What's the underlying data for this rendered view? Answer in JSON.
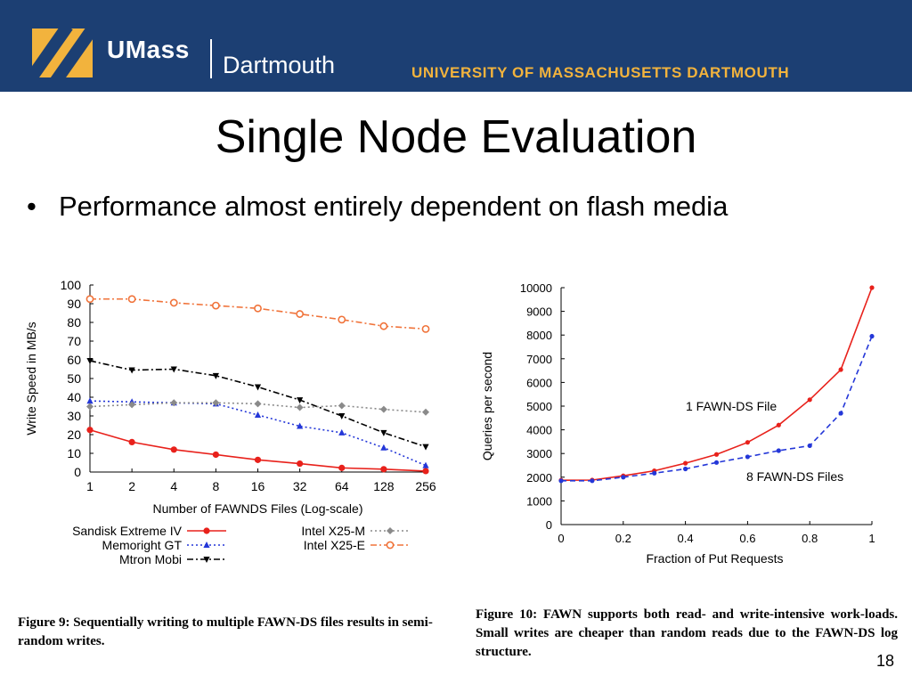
{
  "header": {
    "brand_main": "UMass",
    "brand_sub": "Dartmouth",
    "university": "UNIVERSITY OF MASSACHUSETTS DARTMOUTH",
    "banner_color": "#1c3f73",
    "accent_color": "#f2b33d"
  },
  "slide": {
    "title": "Single Node Evaluation",
    "bullet": "Performance almost entirely dependent on flash media",
    "page_number": "18"
  },
  "captions": {
    "fig9": "Figure 9: Sequentially writing to multiple FAWN-DS files results in semi-random writes.",
    "fig10": "Figure 10: FAWN supports both read- and write-intensive work-loads. Small writes are cheaper than random reads due to the FAWN-DS log structure."
  },
  "chart_data": [
    {
      "type": "line",
      "xlabel": "Number of FAWNDS Files (Log-scale)",
      "ylabel": "Write Speed in MB/s",
      "x_scale": "log2",
      "categories": [
        "1",
        "2",
        "4",
        "8",
        "16",
        "32",
        "64",
        "128",
        "256"
      ],
      "yticks": [
        "0",
        "10",
        "20",
        "30",
        "40",
        "50",
        "60",
        "70",
        "80",
        "90",
        "100"
      ],
      "ylim": [
        0,
        100
      ],
      "legend_position": "bottom",
      "series": [
        {
          "name": "Sandisk Extreme IV",
          "color": "#e8211b",
          "dash": "solid",
          "marker": "circle",
          "values": [
            22.5,
            16,
            12,
            9.3,
            6.5,
            4.5,
            2.2,
            1.5,
            0.5
          ]
        },
        {
          "name": "Memoright GT",
          "color": "#2437d8",
          "dash": "dot",
          "marker": "triangle-up",
          "values": [
            38,
            37.5,
            37,
            36.5,
            30.5,
            24.5,
            21,
            13,
            3.5
          ]
        },
        {
          "name": "Mtron Mobi",
          "color": "#000000",
          "dash": "dash-dot",
          "marker": "triangle-down",
          "values": [
            59.5,
            54.5,
            55,
            51.5,
            45.5,
            38.5,
            30,
            21,
            13.5
          ]
        },
        {
          "name": "Intel X25-M",
          "color": "#8a8a8a",
          "dash": "dot",
          "marker": "diamond",
          "values": [
            35,
            36,
            37,
            37,
            36.5,
            34.5,
            35.5,
            33.5,
            32
          ]
        },
        {
          "name": "Intel X25-E",
          "color": "#f0733a",
          "dash": "dash-dot",
          "marker": "circle-open",
          "values": [
            92.5,
            92.5,
            90.5,
            89,
            87.5,
            84.5,
            81.5,
            78,
            76.5
          ]
        }
      ]
    },
    {
      "type": "line",
      "xlabel": "Fraction of Put Requests",
      "ylabel": "Queries per second",
      "xticks": [
        "0",
        "0.2",
        "0.4",
        "0.6",
        "0.8",
        "1"
      ],
      "xlim": [
        0,
        1
      ],
      "yticks": [
        "0",
        "1000",
        "2000",
        "3000",
        "4000",
        "5000",
        "6000",
        "7000",
        "8000",
        "9000",
        "10000"
      ],
      "ylim": [
        0,
        10000
      ],
      "series": [
        {
          "name": "1 FAWN-DS File",
          "color": "#e8211b",
          "dash": "solid",
          "marker": "dot",
          "x": [
            0,
            0.1,
            0.2,
            0.3,
            0.4,
            0.5,
            0.6,
            0.7,
            0.8,
            0.9,
            1.0
          ],
          "values": [
            1870,
            1880,
            2060,
            2270,
            2590,
            2960,
            3470,
            4200,
            5270,
            6540,
            10000
          ]
        },
        {
          "name": "8 FAWN-DS Files",
          "color": "#2437d8",
          "dash": "dash",
          "marker": "dot",
          "x": [
            0,
            0.1,
            0.2,
            0.3,
            0.4,
            0.5,
            0.6,
            0.7,
            0.8,
            0.9,
            1.0
          ],
          "values": [
            1850,
            1850,
            2000,
            2170,
            2350,
            2620,
            2860,
            3120,
            3330,
            4700,
            7950
          ]
        }
      ]
    }
  ]
}
